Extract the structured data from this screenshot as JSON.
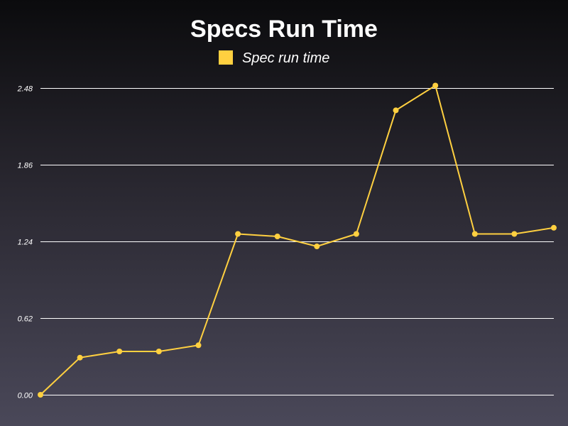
{
  "chart_data": {
    "type": "line",
    "title": "Specs Run Time",
    "xlabel": "",
    "ylabel": "",
    "ylim": [
      0,
      2.48
    ],
    "y_ticks": [
      "0.00",
      "0.62",
      "1.24",
      "1.86",
      "2.48"
    ],
    "grid": true,
    "legend_position": "top-center",
    "series": [
      {
        "name": "Spec run time",
        "color": "#ffd040",
        "values": [
          0.0,
          0.3,
          0.35,
          0.35,
          0.4,
          1.3,
          1.28,
          1.2,
          1.3,
          2.3,
          2.5,
          1.3,
          1.3,
          1.35
        ]
      }
    ]
  },
  "colors": {
    "series": "#ffd040",
    "grid": "#ffffff",
    "text": "#ffffff"
  }
}
